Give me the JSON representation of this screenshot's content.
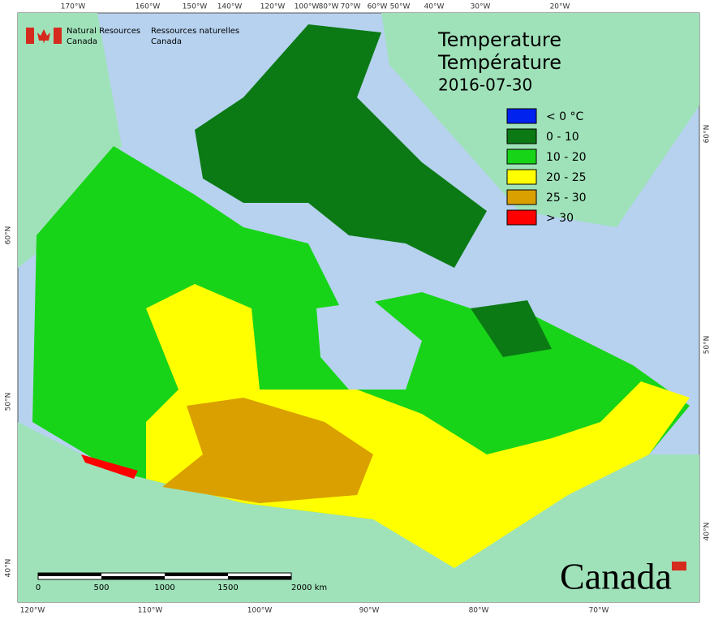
{
  "header": {
    "org_en": [
      "Natural Resources",
      "Canada"
    ],
    "org_fr": [
      "Ressources naturelles",
      "Canada"
    ]
  },
  "title": [
    "Temperature",
    "Température",
    "2016-07-30"
  ],
  "legend": [
    {
      "label": "< 0 °C",
      "color": "#0022ee"
    },
    {
      "label": "0 - 10",
      "color": "#0b7a14"
    },
    {
      "label": "10 - 20",
      "color": "#18d418"
    },
    {
      "label": "20 - 25",
      "color": "#ffff00"
    },
    {
      "label": "25 - 30",
      "color": "#d9a000"
    },
    {
      "label": "> 30",
      "color": "#ff0000"
    }
  ],
  "graticule": {
    "top": [
      "170°W",
      "160°W",
      "150°W",
      "140°W",
      "120°W",
      "100°W",
      "80°W",
      "70°W",
      "60°W",
      "50°W",
      "40°W",
      "30°W",
      "20°W"
    ],
    "bottom": [
      "120°W",
      "110°W",
      "100°W",
      "90°W",
      "80°W",
      "70°W"
    ],
    "left": [
      "60°N",
      "50°N",
      "40°N"
    ],
    "right": [
      "60°N",
      "50°N",
      "40°N"
    ]
  },
  "scale_bar": [
    "0",
    "500",
    "1000",
    "1500",
    "2000 km"
  ],
  "wordmark": "Canada"
}
